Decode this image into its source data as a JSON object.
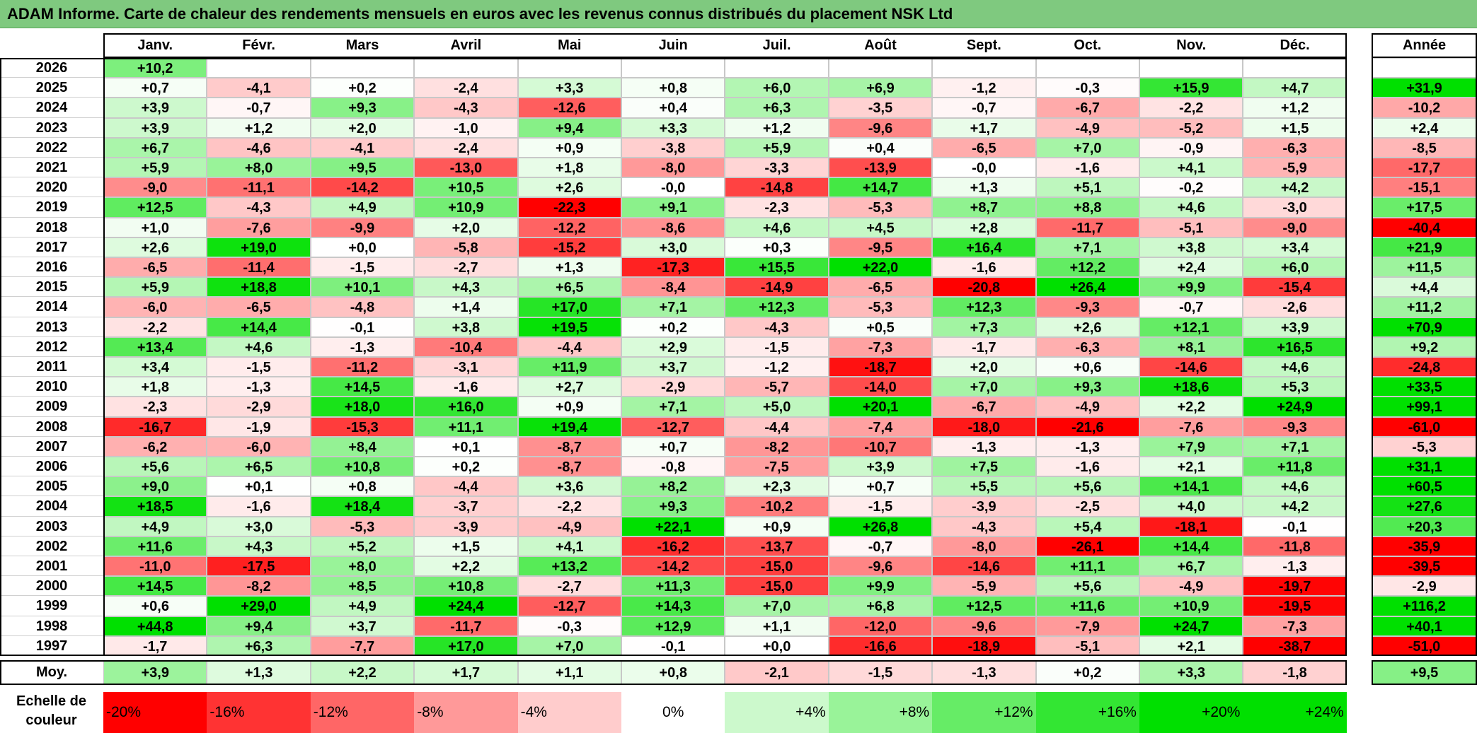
{
  "title": "ADAM Informe. Carte de chaleur des rendements mensuels en euros avec les revenus connus distribués du placement NSK Ltd",
  "year_header": "Année",
  "avg_label": "Moy.",
  "scale_label": "Echelle de couleur",
  "colors": {
    "negative_max": "#ff0000",
    "neutral": "#ffffff",
    "positive_max": "#00e000",
    "title_bg": "#7fc97f"
  },
  "chart_data": {
    "type": "heatmap",
    "title": "ADAM Informe. Carte de chaleur des rendements mensuels en euros avec les revenus connus distribués du placement NSK Ltd",
    "months": [
      "Janv.",
      "Févr.",
      "Mars",
      "Avril",
      "Mai",
      "Juin",
      "Juil.",
      "Août",
      "Sept.",
      "Oct.",
      "Nov.",
      "Déc."
    ],
    "rows": [
      {
        "year": "2026",
        "values": [
          "+10,2",
          "",
          "",
          "",
          "",
          "",
          "",
          "",
          "",
          "",
          "",
          ""
        ],
        "annual": ""
      },
      {
        "year": "2025",
        "values": [
          "+0,7",
          "-4,1",
          "+0,2",
          "-2,4",
          "+3,3",
          "+0,8",
          "+6,0",
          "+6,9",
          "-1,2",
          "-0,3",
          "+15,9",
          "+4,7"
        ],
        "annual": "+31,9"
      },
      {
        "year": "2024",
        "values": [
          "+3,9",
          "-0,7",
          "+9,3",
          "-4,3",
          "-12,6",
          "+0,4",
          "+6,3",
          "-3,5",
          "-0,7",
          "-6,7",
          "-2,2",
          "+1,2"
        ],
        "annual": "-10,2"
      },
      {
        "year": "2023",
        "values": [
          "+3,9",
          "+1,2",
          "+2,0",
          "-1,0",
          "+9,4",
          "+3,3",
          "+1,2",
          "-9,6",
          "+1,7",
          "-4,9",
          "-5,2",
          "+1,5"
        ],
        "annual": "+2,4"
      },
      {
        "year": "2022",
        "values": [
          "+6,7",
          "-4,6",
          "-4,1",
          "-2,4",
          "+0,9",
          "-3,8",
          "+5,9",
          "+0,4",
          "-6,5",
          "+7,0",
          "-0,9",
          "-6,3"
        ],
        "annual": "-8,5"
      },
      {
        "year": "2021",
        "values": [
          "+5,9",
          "+8,0",
          "+9,5",
          "-13,0",
          "+1,8",
          "-8,0",
          "-3,3",
          "-13,9",
          "-0,0",
          "-1,6",
          "+4,1",
          "-5,9"
        ],
        "annual": "-17,7"
      },
      {
        "year": "2020",
        "values": [
          "-9,0",
          "-11,1",
          "-14,2",
          "+10,5",
          "+2,6",
          "-0,0",
          "-14,8",
          "+14,7",
          "+1,3",
          "+5,1",
          "-0,2",
          "+4,2"
        ],
        "annual": "-15,1"
      },
      {
        "year": "2019",
        "values": [
          "+12,5",
          "-4,3",
          "+4,9",
          "+10,9",
          "-22,3",
          "+9,1",
          "-2,3",
          "-5,3",
          "+8,7",
          "+8,8",
          "+4,6",
          "-3,0"
        ],
        "annual": "+17,5"
      },
      {
        "year": "2018",
        "values": [
          "+1,0",
          "-7,6",
          "-9,9",
          "+2,0",
          "-12,2",
          "-8,6",
          "+4,6",
          "+4,5",
          "+2,8",
          "-11,7",
          "-5,1",
          "-9,0"
        ],
        "annual": "-40,4"
      },
      {
        "year": "2017",
        "values": [
          "+2,6",
          "+19,0",
          "+0,0",
          "-5,8",
          "-15,2",
          "+3,0",
          "+0,3",
          "-9,5",
          "+16,4",
          "+7,1",
          "+3,8",
          "+3,4"
        ],
        "annual": "+21,9"
      },
      {
        "year": "2016",
        "values": [
          "-6,5",
          "-11,4",
          "-1,5",
          "-2,7",
          "+1,3",
          "-17,3",
          "+15,5",
          "+22,0",
          "-1,6",
          "+12,2",
          "+2,4",
          "+6,0"
        ],
        "annual": "+11,5"
      },
      {
        "year": "2015",
        "values": [
          "+5,9",
          "+18,8",
          "+10,1",
          "+4,3",
          "+6,5",
          "-8,4",
          "-14,9",
          "-6,5",
          "-20,8",
          "+26,4",
          "+9,9",
          "-15,4"
        ],
        "annual": "+4,4"
      },
      {
        "year": "2014",
        "values": [
          "-6,0",
          "-6,5",
          "-4,8",
          "+1,4",
          "+17,0",
          "+7,1",
          "+12,3",
          "-5,3",
          "+12,3",
          "-9,3",
          "-0,7",
          "-2,6"
        ],
        "annual": "+11,2"
      },
      {
        "year": "2013",
        "values": [
          "-2,2",
          "+14,4",
          "-0,1",
          "+3,8",
          "+19,5",
          "+0,2",
          "-4,3",
          "+0,5",
          "+7,3",
          "+2,6",
          "+12,1",
          "+3,9"
        ],
        "annual": "+70,9"
      },
      {
        "year": "2012",
        "values": [
          "+13,4",
          "+4,6",
          "-1,3",
          "-10,4",
          "-4,4",
          "+2,9",
          "-1,5",
          "-7,3",
          "-1,7",
          "-6,3",
          "+8,1",
          "+16,5"
        ],
        "annual": "+9,2"
      },
      {
        "year": "2011",
        "values": [
          "+3,4",
          "-1,5",
          "-11,2",
          "-3,1",
          "+11,9",
          "+3,7",
          "-1,2",
          "-18,7",
          "+2,0",
          "+0,6",
          "-14,6",
          "+4,6"
        ],
        "annual": "-24,8"
      },
      {
        "year": "2010",
        "values": [
          "+1,8",
          "-1,3",
          "+14,5",
          "-1,6",
          "+2,7",
          "-2,9",
          "-5,7",
          "-14,0",
          "+7,0",
          "+9,3",
          "+18,6",
          "+5,3"
        ],
        "annual": "+33,5"
      },
      {
        "year": "2009",
        "values": [
          "-2,3",
          "-2,9",
          "+18,0",
          "+16,0",
          "+0,9",
          "+7,1",
          "+5,0",
          "+20,1",
          "-6,7",
          "-4,9",
          "+2,2",
          "+24,9"
        ],
        "annual": "+99,1"
      },
      {
        "year": "2008",
        "values": [
          "-16,7",
          "-1,9",
          "-15,3",
          "+11,1",
          "+19,4",
          "-12,7",
          "-4,4",
          "-7,4",
          "-18,0",
          "-21,6",
          "-7,6",
          "-9,3"
        ],
        "annual": "-61,0"
      },
      {
        "year": "2007",
        "values": [
          "-6,2",
          "-6,0",
          "+8,4",
          "+0,1",
          "-8,7",
          "+0,7",
          "-8,2",
          "-10,7",
          "-1,3",
          "-1,3",
          "+7,9",
          "+7,1"
        ],
        "annual": "-5,3"
      },
      {
        "year": "2006",
        "values": [
          "+5,6",
          "+6,5",
          "+10,8",
          "+0,2",
          "-8,7",
          "-0,8",
          "-7,5",
          "+3,9",
          "+7,5",
          "-1,6",
          "+2,1",
          "+11,8"
        ],
        "annual": "+31,1"
      },
      {
        "year": "2005",
        "values": [
          "+9,0",
          "+0,1",
          "+0,8",
          "-4,4",
          "+3,6",
          "+8,2",
          "+2,3",
          "+0,7",
          "+5,5",
          "+5,6",
          "+14,1",
          "+4,6"
        ],
        "annual": "+60,5"
      },
      {
        "year": "2004",
        "values": [
          "+18,5",
          "-1,6",
          "+18,4",
          "-3,7",
          "-2,2",
          "+9,3",
          "-10,2",
          "-1,5",
          "-3,9",
          "-2,5",
          "+4,0",
          "+4,2"
        ],
        "annual": "+27,6"
      },
      {
        "year": "2003",
        "values": [
          "+4,9",
          "+3,0",
          "-5,3",
          "-3,9",
          "-4,9",
          "+22,1",
          "+0,9",
          "+26,8",
          "-4,3",
          "+5,4",
          "-18,1",
          "-0,1"
        ],
        "annual": "+20,3"
      },
      {
        "year": "2002",
        "values": [
          "+11,6",
          "+4,3",
          "+5,2",
          "+1,5",
          "+4,1",
          "-16,2",
          "-13,7",
          "-0,7",
          "-8,0",
          "-26,1",
          "+14,4",
          "-11,8"
        ],
        "annual": "-35,9"
      },
      {
        "year": "2001",
        "values": [
          "-11,0",
          "-17,5",
          "+8,0",
          "+2,2",
          "+13,2",
          "-14,2",
          "-15,0",
          "-9,6",
          "-14,6",
          "+11,1",
          "+6,7",
          "-1,3"
        ],
        "annual": "-39,5"
      },
      {
        "year": "2000",
        "values": [
          "+14,5",
          "-8,2",
          "+8,5",
          "+10,8",
          "-2,7",
          "+11,3",
          "-15,0",
          "+9,9",
          "-5,9",
          "+5,6",
          "-4,9",
          "-19,7"
        ],
        "annual": "-2,9"
      },
      {
        "year": "1999",
        "values": [
          "+0,6",
          "+29,0",
          "+4,9",
          "+24,4",
          "-12,7",
          "+14,3",
          "+7,0",
          "+6,8",
          "+12,5",
          "+11,6",
          "+10,9",
          "-19,5"
        ],
        "annual": "+116,2"
      },
      {
        "year": "1998",
        "values": [
          "+44,8",
          "+9,4",
          "+3,7",
          "-11,7",
          "-0,3",
          "+12,9",
          "+1,1",
          "-12,0",
          "-9,6",
          "-7,9",
          "+24,7",
          "-7,3"
        ],
        "annual": "+40,1"
      },
      {
        "year": "1997",
        "values": [
          "-1,7",
          "+6,3",
          "-7,7",
          "+17,0",
          "+7,0",
          "-0,1",
          "+0,0",
          "-16,6",
          "-18,9",
          "-5,1",
          "+2,1",
          "-38,7"
        ],
        "annual": "-51,0"
      }
    ],
    "averages": {
      "values": [
        "+3,9",
        "+1,3",
        "+2,2",
        "+1,7",
        "+1,1",
        "+0,8",
        "-2,1",
        "-1,5",
        "-1,3",
        "+0,2",
        "+3,3",
        "-1,8"
      ],
      "annual": "+9,5"
    },
    "color_scale": [
      "-20%",
      "-16%",
      "-12%",
      "-8%",
      "-4%",
      "0%",
      "+4%",
      "+8%",
      "+12%",
      "+16%",
      "+20%",
      "+24%"
    ]
  }
}
